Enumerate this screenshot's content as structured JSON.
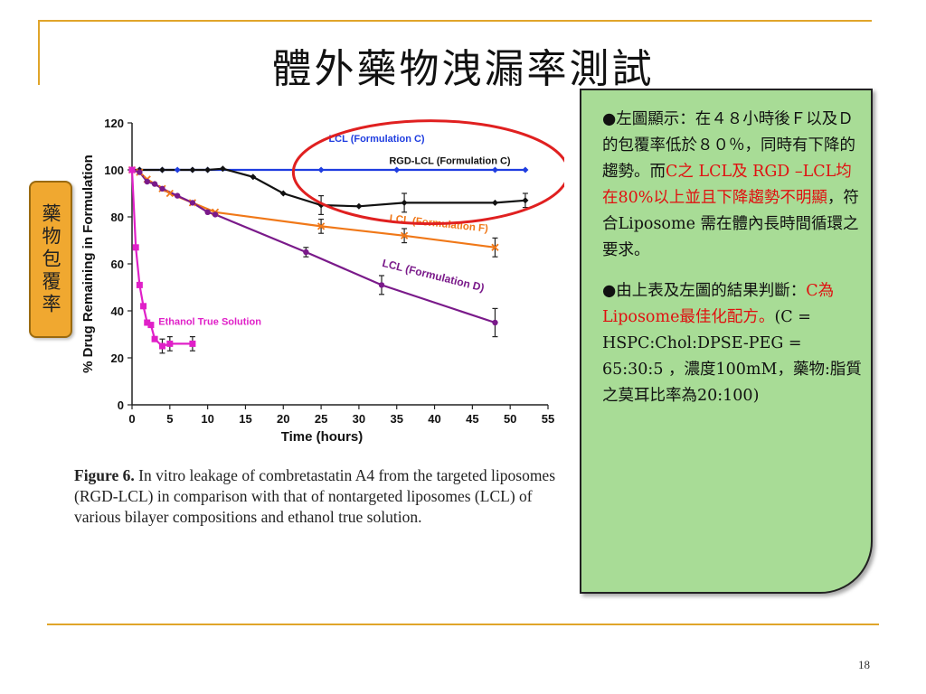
{
  "slide": {
    "title": "體外藥物洩漏率測試",
    "side_tag": "藥物包覆率",
    "page_number": "18",
    "accent_color": "#e0a52a"
  },
  "caption": {
    "label": "Figure 6.",
    "text": " In vitro leakage of combretastatin A4 from the targeted liposomes (RGD-LCL) in comparison with that of nontargeted liposomes (LCL) of various bilayer compositions and ethanol true solution."
  },
  "note": {
    "p1_a": "左圖顯示：在４８小時後Ｆ以及Ｄ的包覆率低於８０％，同時有下降的趨勢。而",
    "p1_red": "C之 LCL及 RGD –LCL均在80%以上並且下降趨勢不明顯",
    "p1_b": "，符合Liposome 需在體內長時間循環之要求。",
    "p2_a": "由上表及左圖的結果判斷：",
    "p2_red": "C為Liposome最佳化配方。",
    "p2_b": "(C = HSPC:Chol:DPSE-PEG = 65:30:5 ，濃度100mM，藥物:脂質之莫耳比率為20:100)",
    "bullet": "●",
    "bg_color": "#a8dc96"
  },
  "chart_data": {
    "type": "line",
    "xlabel": "Time (hours)",
    "ylabel": "% Drug Remaining in Formulation",
    "xlim": [
      0,
      55
    ],
    "ylim": [
      0,
      120
    ],
    "xticks": [
      "0",
      "5",
      "10",
      "15",
      "20",
      "25",
      "30",
      "35",
      "40",
      "45",
      "50",
      "55"
    ],
    "yticks": [
      "0",
      "20",
      "40",
      "60",
      "80",
      "100",
      "120"
    ],
    "grid": false,
    "highlight_ellipse_color": "#e02020",
    "series": [
      {
        "name": "LCL (Formulation C)",
        "color": "#1f3de0",
        "marker": "diamond",
        "x": [
          0,
          1,
          4,
          6,
          8,
          10,
          25,
          35,
          48,
          52
        ],
        "y": [
          100,
          100,
          100,
          100,
          100,
          100,
          100,
          100,
          100,
          100
        ]
      },
      {
        "name": "RGD-LCL (Formulation C)",
        "color": "#111111",
        "marker": "diamond",
        "x": [
          0,
          1,
          4,
          8,
          10,
          12,
          16,
          20,
          25,
          30,
          36,
          48,
          52
        ],
        "y": [
          100,
          100,
          100,
          100,
          100,
          100.5,
          97,
          90,
          85,
          84.5,
          86,
          86,
          87
        ]
      },
      {
        "name": "LCL (Formulation F)",
        "color": "#f07818",
        "marker": "x",
        "x": [
          0,
          1,
          2,
          4,
          5,
          8,
          11,
          25,
          36,
          48
        ],
        "y": [
          100,
          99,
          96,
          92,
          90,
          86,
          82,
          76,
          72,
          67
        ]
      },
      {
        "name": "LCL (Formulation D)",
        "color": "#7a1a8a",
        "marker": "circle",
        "x": [
          0,
          1,
          2,
          3,
          4,
          6,
          8,
          10,
          11,
          23,
          33,
          48
        ],
        "y": [
          100,
          99,
          95,
          94,
          92,
          89,
          86,
          82,
          81,
          65,
          51,
          35
        ]
      },
      {
        "name": "Ethanol True Solution",
        "color": "#e020c8",
        "marker": "square",
        "x": [
          0,
          0.5,
          1,
          1.5,
          2,
          2.5,
          3,
          4,
          5,
          8
        ],
        "y": [
          100,
          67,
          51,
          42,
          35,
          34,
          28,
          25,
          26,
          26
        ]
      }
    ],
    "errors": [
      {
        "series": 1,
        "x": 25,
        "y": 85,
        "e": 4
      },
      {
        "series": 1,
        "x": 36,
        "y": 86,
        "e": 4
      },
      {
        "series": 1,
        "x": 52,
        "y": 87,
        "e": 3
      },
      {
        "series": 2,
        "x": 25,
        "y": 76,
        "e": 3
      },
      {
        "series": 2,
        "x": 36,
        "y": 72,
        "e": 3
      },
      {
        "series": 2,
        "x": 48,
        "y": 67,
        "e": 4
      },
      {
        "series": 3,
        "x": 23,
        "y": 65,
        "e": 2
      },
      {
        "series": 3,
        "x": 33,
        "y": 51,
        "e": 4
      },
      {
        "series": 3,
        "x": 48,
        "y": 35,
        "e": 6
      },
      {
        "series": 4,
        "x": 4,
        "y": 25,
        "e": 3
      },
      {
        "series": 4,
        "x": 5,
        "y": 26,
        "e": 3
      },
      {
        "series": 4,
        "x": 8,
        "y": 26,
        "e": 3
      }
    ]
  }
}
